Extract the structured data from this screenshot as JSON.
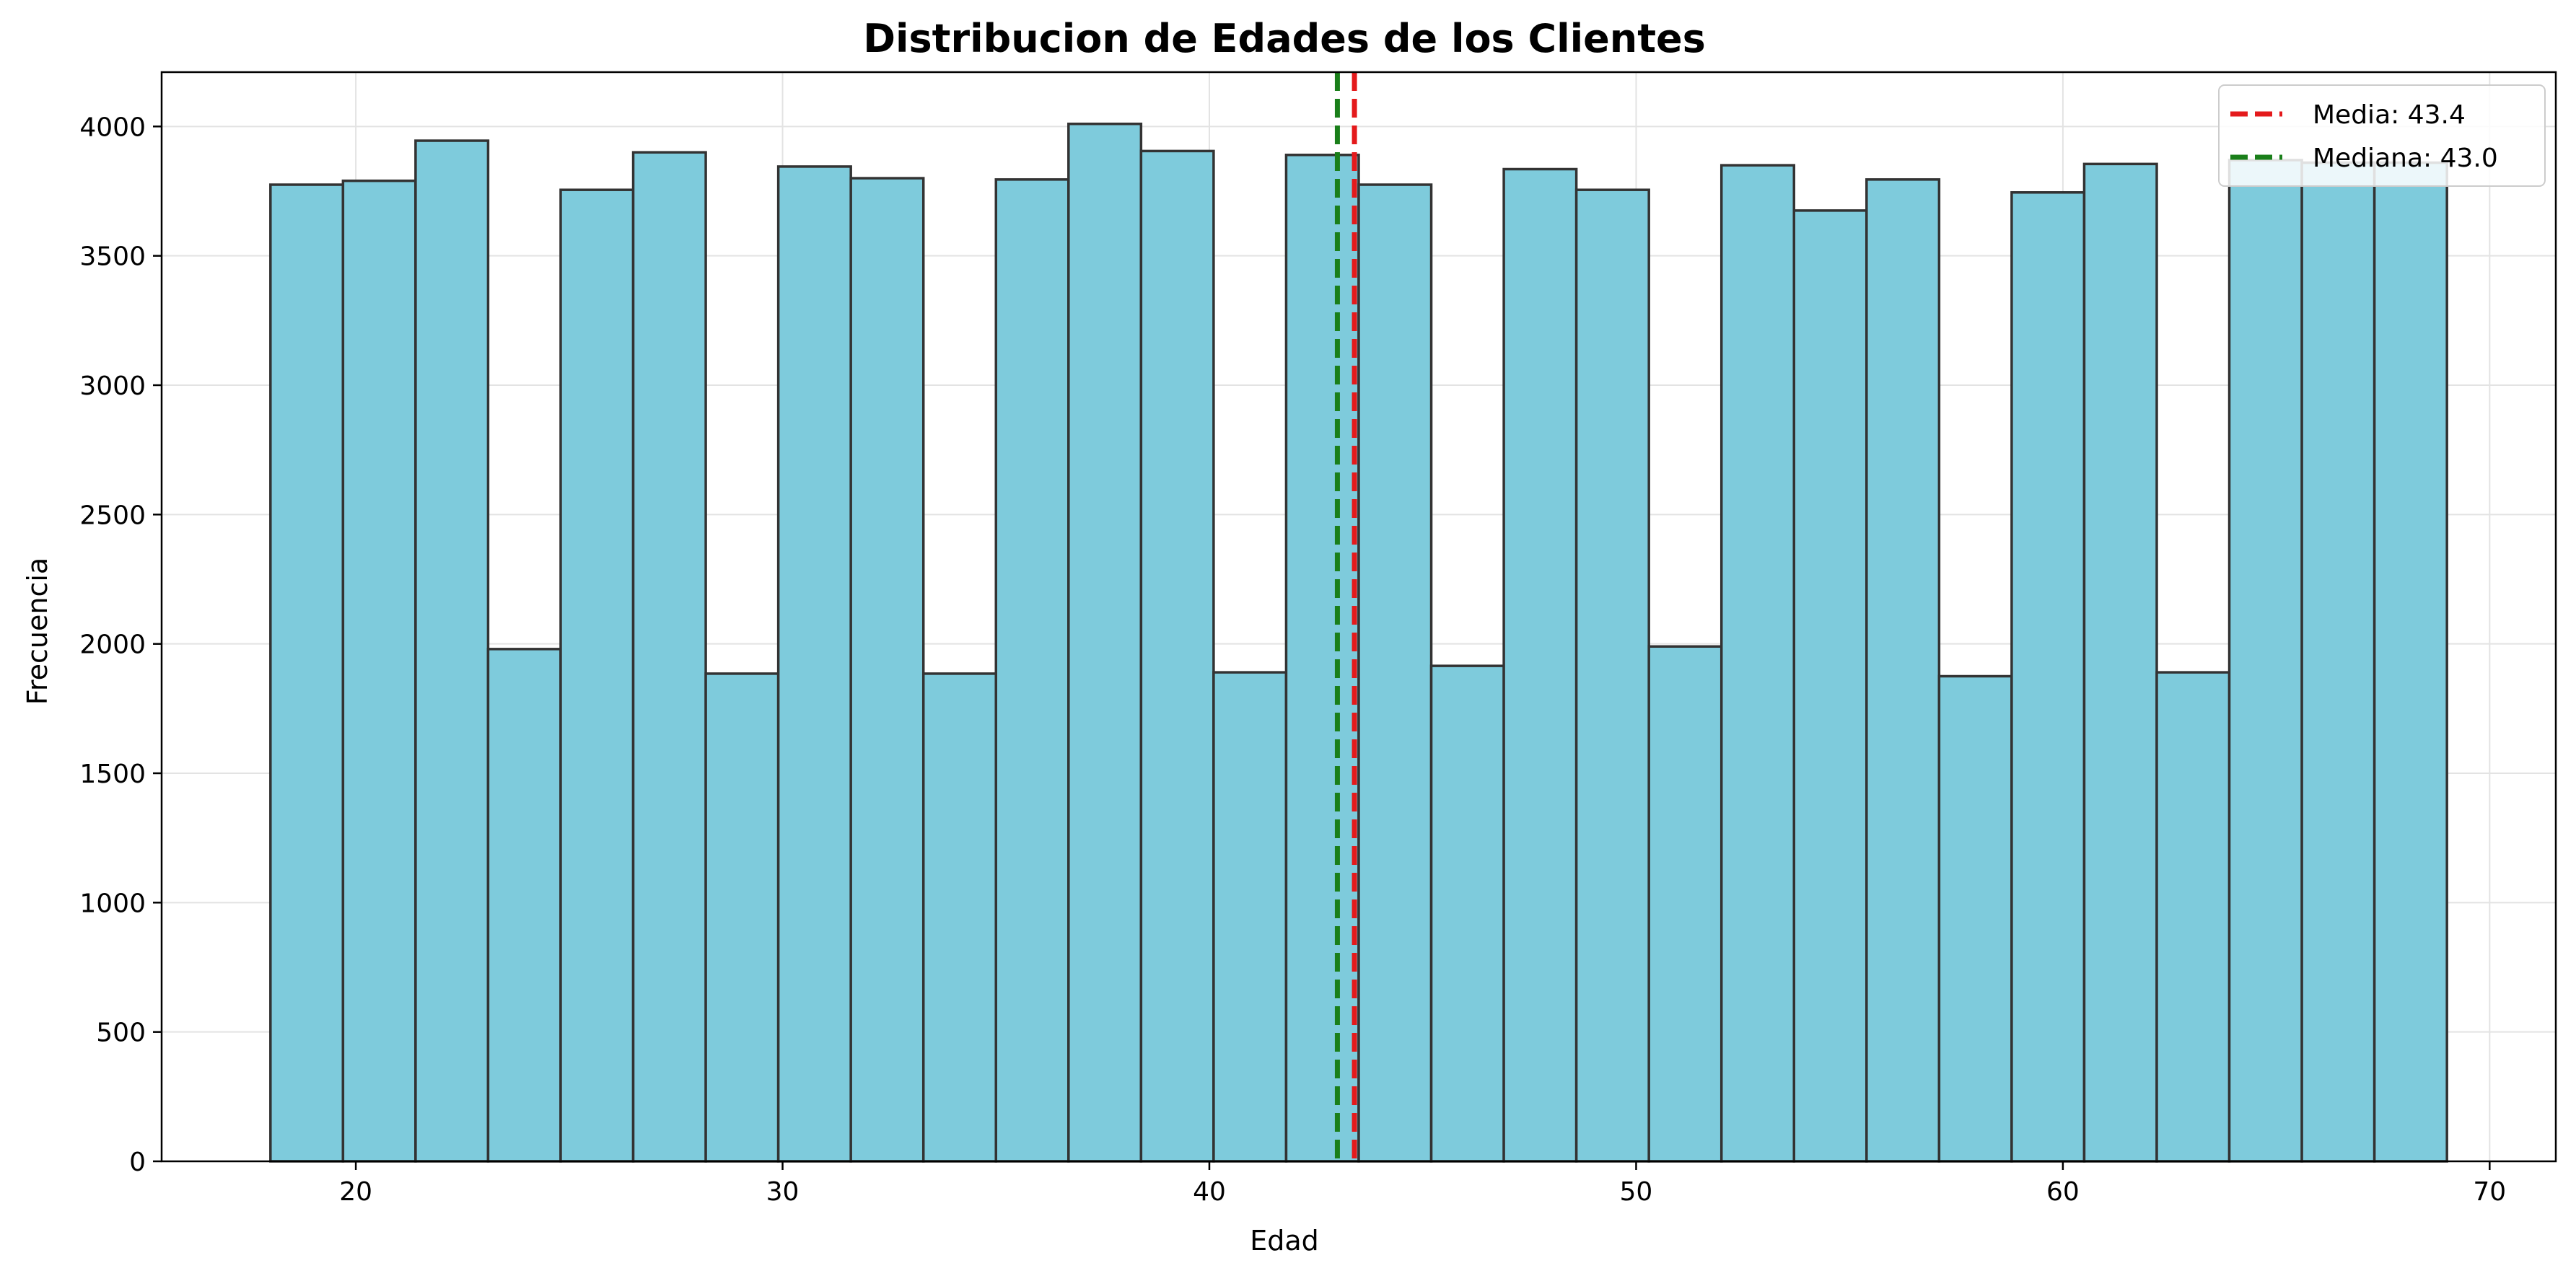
{
  "chart_data": {
    "type": "bar",
    "title": "Distribucion de Edades de los Clientes",
    "xlabel": "Edad",
    "ylabel": "Frecuencia",
    "xlim": [
      15.45,
      71.55
    ],
    "ylim": [
      0,
      4210
    ],
    "xticks": [
      20,
      30,
      40,
      50,
      60,
      70
    ],
    "yticks": [
      0,
      500,
      1000,
      1500,
      2000,
      2500,
      3000,
      3500,
      4000
    ],
    "grid": true,
    "bar_color": "#7ECBDC",
    "bar_edge_color": "#333333",
    "bins": [
      {
        "x0": 18.0,
        "x1": 19.7,
        "value": 3775
      },
      {
        "x0": 19.7,
        "x1": 21.4,
        "value": 3790
      },
      {
        "x0": 21.4,
        "x1": 23.1,
        "value": 3945
      },
      {
        "x0": 23.1,
        "x1": 24.8,
        "value": 1980
      },
      {
        "x0": 24.8,
        "x1": 26.5,
        "value": 3755
      },
      {
        "x0": 26.5,
        "x1": 28.2,
        "value": 3900
      },
      {
        "x0": 28.2,
        "x1": 29.9,
        "value": 1885
      },
      {
        "x0": 29.9,
        "x1": 31.6,
        "value": 3845
      },
      {
        "x0": 31.6,
        "x1": 33.3,
        "value": 3800
      },
      {
        "x0": 33.3,
        "x1": 35.0,
        "value": 1885
      },
      {
        "x0": 35.0,
        "x1": 36.7,
        "value": 3795
      },
      {
        "x0": 36.7,
        "x1": 38.4,
        "value": 4010
      },
      {
        "x0": 38.4,
        "x1": 40.1,
        "value": 3905
      },
      {
        "x0": 40.1,
        "x1": 41.8,
        "value": 1890
      },
      {
        "x0": 41.8,
        "x1": 43.5,
        "value": 3890
      },
      {
        "x0": 43.5,
        "x1": 45.2,
        "value": 3775
      },
      {
        "x0": 45.2,
        "x1": 46.9,
        "value": 1915
      },
      {
        "x0": 46.9,
        "x1": 48.6,
        "value": 3835
      },
      {
        "x0": 48.6,
        "x1": 50.3,
        "value": 3755
      },
      {
        "x0": 50.3,
        "x1": 52.0,
        "value": 1990
      },
      {
        "x0": 52.0,
        "x1": 53.7,
        "value": 3850
      },
      {
        "x0": 53.7,
        "x1": 55.4,
        "value": 3675
      },
      {
        "x0": 55.4,
        "x1": 57.1,
        "value": 3795
      },
      {
        "x0": 57.1,
        "x1": 58.8,
        "value": 1875
      },
      {
        "x0": 58.8,
        "x1": 60.5,
        "value": 3745
      },
      {
        "x0": 60.5,
        "x1": 62.2,
        "value": 3855
      },
      {
        "x0": 62.2,
        "x1": 63.9,
        "value": 1890
      },
      {
        "x0": 63.9,
        "x1": 65.6,
        "value": 3870
      },
      {
        "x0": 65.6,
        "x1": 67.3,
        "value": 3860
      },
      {
        "x0": 67.3,
        "x1": 69.0,
        "value": 3860
      }
    ],
    "lines": [
      {
        "name": "Media: 43.4",
        "x": 43.4,
        "color": "#e41a1c"
      },
      {
        "name": "Mediana: 43.0",
        "x": 43.0,
        "color": "#1a7f1a"
      }
    ],
    "legend_position": "top-right"
  }
}
